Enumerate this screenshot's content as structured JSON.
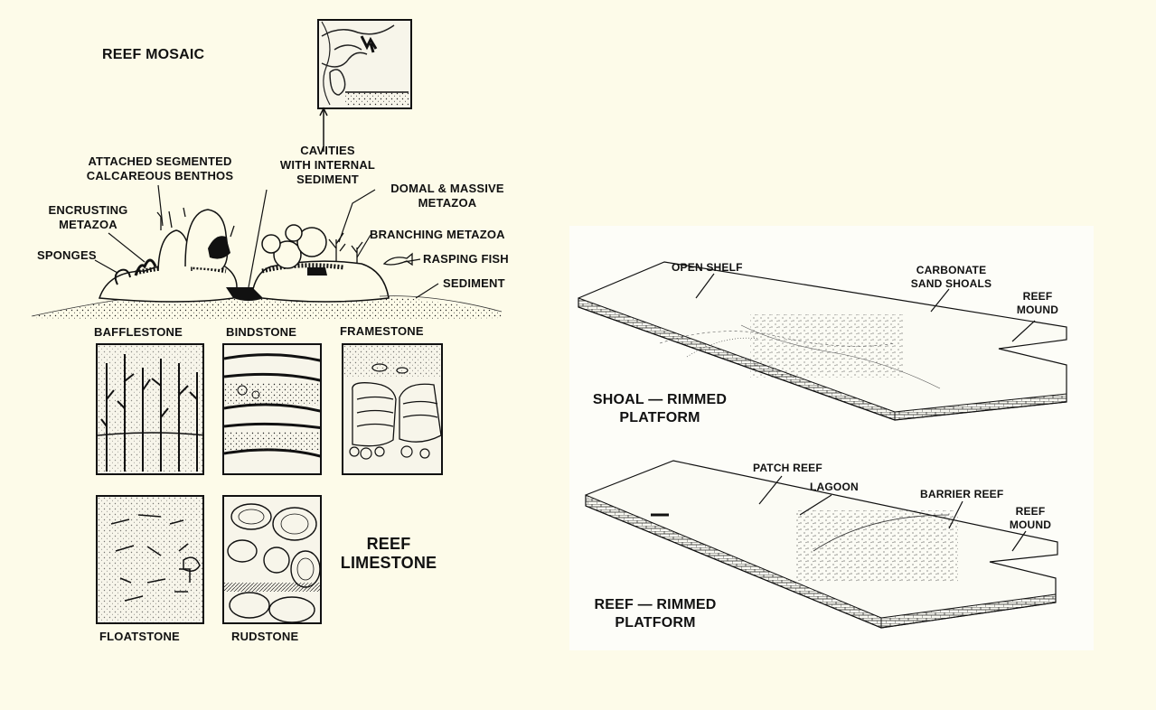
{
  "reef_mosaic": {
    "title": "REEF MOSAIC",
    "labels": {
      "attached": [
        "ATTACHED SEGMENTED",
        "CALCAREOUS BENTHOS"
      ],
      "cavities": [
        "CAVITIES",
        "WITH INTERNAL",
        "SEDIMENT"
      ],
      "domal": [
        "DOMAL & MASSIVE",
        "METAZOA"
      ],
      "encrusting": [
        "ENCRUSTING",
        "METAZOA"
      ],
      "branching": "BRANCHING METAZOA",
      "sponges": "SPONGES",
      "rasping": "RASPING FISH",
      "sediment": "SEDIMENT"
    }
  },
  "textures": {
    "bafflestone": "BAFFLESTONE",
    "bindstone": "BINDSTONE",
    "framestone": "FRAMESTONE",
    "floatstone": "FLOATSTONE",
    "rudstone": "RUDSTONE"
  },
  "reef_limestone": [
    "REEF",
    "LIMESTONE"
  ],
  "shoal_platform": {
    "title": [
      "SHOAL — RIMMED",
      "PLATFORM"
    ],
    "open_shelf": "OPEN SHELF",
    "sand_shoals": [
      "CARBONATE",
      "SAND SHOALS"
    ],
    "reef_mound": [
      "REEF",
      "MOUND"
    ]
  },
  "reef_platform": {
    "title": [
      "REEF — RIMMED",
      "PLATFORM"
    ],
    "patch_reef": "PATCH REEF",
    "lagoon": "LAGOON",
    "barrier_reef": "BARRIER REEF",
    "reef_mound": [
      "REEF",
      "MOUND"
    ]
  }
}
